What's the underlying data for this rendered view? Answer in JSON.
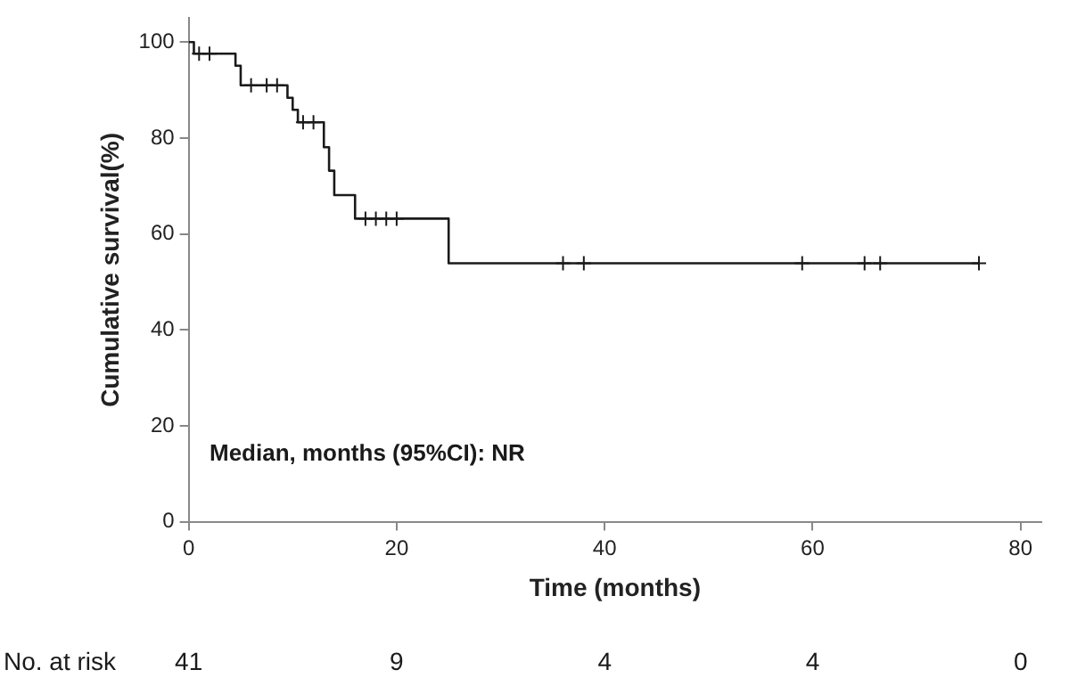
{
  "chart_data": {
    "type": "step",
    "xlabel": "Time (months)",
    "ylabel": "Cumulative survival(%)",
    "xlim": [
      0,
      82
    ],
    "xticks": [
      0,
      20,
      40,
      60,
      80
    ],
    "ylim": [
      0,
      105
    ],
    "yticks": [
      0,
      20,
      40,
      60,
      80,
      100
    ],
    "grid": false,
    "legend": false,
    "series": [
      {
        "color": "#1a1a1a",
        "x": [
          0,
          0.5,
          4.5,
          5,
          9.5,
          10,
          10.5,
          13,
          13.5,
          14,
          16,
          25,
          76
        ],
        "values": [
          100,
          97.6,
          95.1,
          91,
          88.4,
          85.9,
          83.3,
          78.1,
          73.2,
          68.1,
          63.2,
          53.9,
          53.9
        ],
        "marker": "none"
      },
      {
        "type": "scatter",
        "color": "#1a1a1a",
        "x": [
          1,
          2,
          6,
          7.5,
          8.5,
          11,
          12,
          17,
          18,
          19,
          20,
          36,
          38,
          59,
          65,
          66.5,
          76
        ],
        "values": [
          97.6,
          97.6,
          91,
          91,
          91,
          83.3,
          83.3,
          63.2,
          63.2,
          63.2,
          63.2,
          53.9,
          53.9,
          53.9,
          53.9,
          53.9,
          53.9
        ],
        "marker": "cross"
      }
    ],
    "annotations": [
      "Median, months (95%CI): NR",
      "No. at risk",
      "41",
      "9",
      "4",
      "4",
      "0"
    ]
  }
}
